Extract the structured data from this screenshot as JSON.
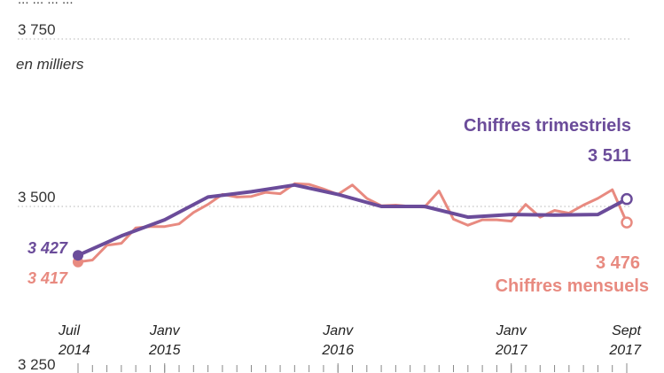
{
  "chart_data": {
    "type": "line",
    "title_fragment": "... ... ... ...",
    "unit_label": "en milliers",
    "y_ticks": [
      "3 750",
      "3 500",
      "3 250"
    ],
    "y_tick_values": [
      3750,
      3500,
      3250
    ],
    "ylim": [
      3250,
      3750
    ],
    "x_tick_labels": [
      {
        "month": "Juil",
        "year": "2014",
        "x": 0
      },
      {
        "month": "Janv",
        "year": "2015",
        "x": 6
      },
      {
        "month": "Janv",
        "year": "2016",
        "x": 18
      },
      {
        "month": "Janv",
        "year": "2017",
        "x": 30
      },
      {
        "month": "Sept",
        "year": "2017",
        "x": 38
      }
    ],
    "x_range": [
      0,
      38
    ],
    "series": [
      {
        "name": "Chiffres mensuels",
        "color": "#e88a80",
        "end_value_label": "3 476",
        "start_value_label": "3 417",
        "x": [
          0,
          1,
          2,
          3,
          4,
          5,
          6,
          7,
          8,
          9,
          10,
          11,
          12,
          13,
          14,
          15,
          16,
          17,
          18,
          19,
          20,
          21,
          22,
          23,
          24,
          25,
          26,
          27,
          28,
          29,
          30,
          31,
          32,
          33,
          34,
          35,
          36,
          37,
          38
        ],
        "values": [
          3417,
          3420,
          3442,
          3445,
          3468,
          3470,
          3470,
          3474,
          3491,
          3503,
          3518,
          3514,
          3515,
          3521,
          3519,
          3534,
          3533,
          3526,
          3518,
          3532,
          3512,
          3501,
          3502,
          3500,
          3499,
          3523,
          3481,
          3472,
          3480,
          3480,
          3478,
          3503,
          3484,
          3494,
          3490,
          3502,
          3512,
          3525,
          3476
        ],
        "start_value": 3417,
        "end_value": 3476
      },
      {
        "name": "Chiffres trimestriels",
        "color": "#6b4c9a",
        "end_value_label": "3 511",
        "start_value_label": "3 427",
        "x": [
          0,
          3,
          6,
          9,
          12,
          15,
          18,
          21,
          24,
          27,
          30,
          33,
          36,
          38
        ],
        "values": [
          3427,
          3456,
          3480,
          3514,
          3522,
          3532,
          3518,
          3500,
          3500,
          3484,
          3488,
          3487,
          3488,
          3511
        ],
        "start_value": 3427,
        "end_value": 3511
      }
    ]
  }
}
